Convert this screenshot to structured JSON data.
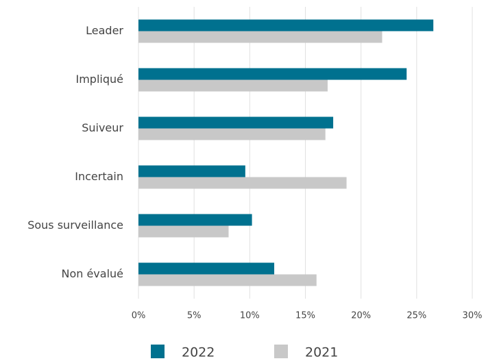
{
  "chart_data": {
    "type": "barh",
    "categories": [
      "Leader",
      "Impliqué",
      "Suiveur",
      "Incertain",
      "Sous surveillance",
      "Non évalué"
    ],
    "series": [
      {
        "name": "2022",
        "color": "#00718f",
        "values": [
          26.5,
          24.1,
          17.5,
          9.6,
          10.2,
          12.2
        ]
      },
      {
        "name": "2021",
        "color": "#c8c8c8",
        "values": [
          21.9,
          17.0,
          16.8,
          18.7,
          8.1,
          16.0
        ]
      }
    ],
    "xlim": [
      0,
      30
    ],
    "xticks": [
      {
        "value": 0,
        "label": "0%"
      },
      {
        "value": 5,
        "label": "5%"
      },
      {
        "value": 10,
        "label": "10%"
      },
      {
        "value": 15,
        "label": "15%"
      },
      {
        "value": 20,
        "label": "20%"
      },
      {
        "value": 25,
        "label": "25%"
      },
      {
        "value": 30,
        "label": "30%"
      }
    ],
    "grid": true,
    "legend": "bottom"
  }
}
